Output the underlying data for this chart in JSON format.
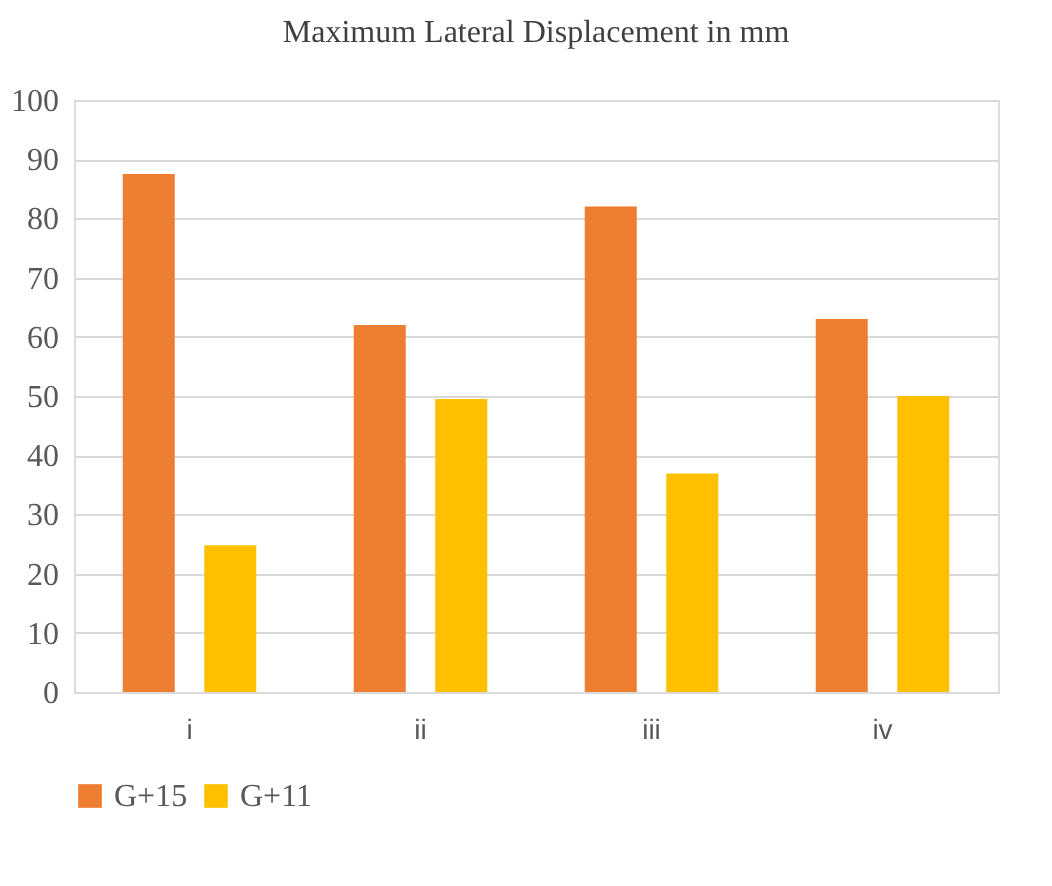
{
  "chart_data": {
    "type": "bar",
    "title": "Maximum Lateral Displacement in mm",
    "categories": [
      "i",
      "ii",
      "iii",
      "iv"
    ],
    "series": [
      {
        "name": "G+15",
        "color": "#ed7d31",
        "values": [
          87.5,
          62,
          82,
          63
        ]
      },
      {
        "name": "G+11",
        "color": "#ffc000",
        "values": [
          24.8,
          49.5,
          36.9,
          50
        ]
      }
    ],
    "ylim": [
      0,
      100
    ],
    "yticks": [
      0,
      10,
      20,
      30,
      40,
      50,
      60,
      70,
      80,
      90,
      100
    ],
    "grid": "y",
    "legend": "bottom"
  }
}
